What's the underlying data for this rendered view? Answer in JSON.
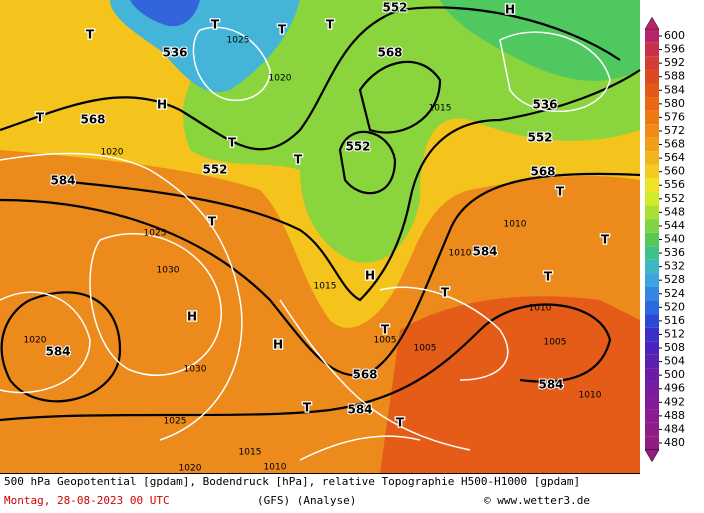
{
  "map": {
    "labels": [
      "552",
      "568",
      "536",
      "568",
      "552",
      "552",
      "552",
      "536",
      "568",
      "584",
      "584",
      "584",
      "568",
      "584",
      "584",
      "H",
      "T",
      "T",
      "T",
      "T",
      "H",
      "T",
      "T",
      "H",
      "T",
      "T",
      "T",
      "H",
      "H",
      "T",
      "T",
      "T",
      "T",
      "T",
      "T",
      "1020",
      "1025",
      "1030",
      "1030",
      "1025",
      "1020",
      "1020",
      "1015",
      "1010",
      "1005",
      "1010",
      "1015",
      "1005",
      "1010",
      "1010",
      "1005",
      "1010",
      "1015",
      "1020",
      "1025"
    ]
  },
  "colorbar": {
    "labels": [
      600,
      596,
      592,
      588,
      584,
      580,
      576,
      572,
      568,
      564,
      560,
      556,
      552,
      548,
      544,
      540,
      536,
      532,
      528,
      524,
      520,
      516,
      512,
      508,
      504,
      500,
      496,
      492,
      488,
      484,
      480
    ],
    "colors": [
      "#b8246a",
      "#c8304c",
      "#d43c34",
      "#dc4a24",
      "#e45818",
      "#ea6814",
      "#ee7812",
      "#f08a14",
      "#f29e18",
      "#f4b41c",
      "#f4cc20",
      "#eee424",
      "#d2ea2c",
      "#a8e036",
      "#7ed444",
      "#56c854",
      "#40c08a",
      "#3cb8c0",
      "#3ca4e0",
      "#3488e4",
      "#2c68e0",
      "#2c48d8",
      "#3a30c8",
      "#4a24bc",
      "#5a20b0",
      "#6a1ca8",
      "#761ca0",
      "#801c98",
      "#881c90",
      "#8e1c88",
      "#941c80"
    ]
  },
  "footer": {
    "line1": "500 hPa Geopotential [gpdam], Bodendruck [hPa], relative Topographie H500-H1000 [gpdam]",
    "date": "Montag, 28-08-2023  00 UTC",
    "model": "(GFS)  (Analyse)",
    "credit": "© www.wetter3.de"
  }
}
